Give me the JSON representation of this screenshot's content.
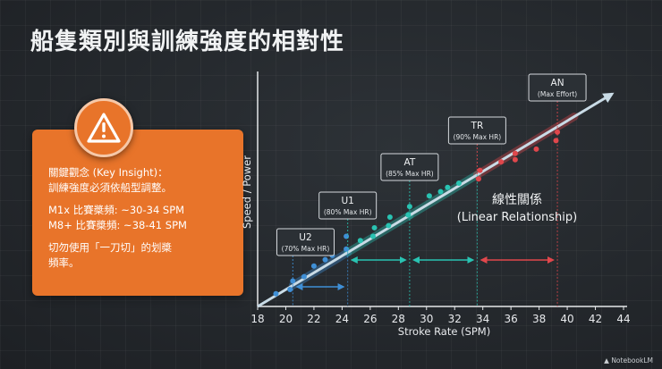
{
  "title": "船隻類別與訓練強度的相對性",
  "insight": {
    "heading": "關鍵觀念 (Key Insight)：",
    "body": "訓練強度必須依船型調整。",
    "m1x": "M1x 比賽槳頻: ~30-34 SPM",
    "m8": "M8+ 比賽槳頻: ~38-41 SPM",
    "note_line1": "切勿使用「一刀切」的划槳",
    "note_line2": "頻率。",
    "icon": "warning-icon"
  },
  "relationship": {
    "line1": "線性關係",
    "line2": "(Linear Relationship)"
  },
  "footer": "NotebookLM",
  "colors": {
    "accent_orange": "#e8742a",
    "blue": "#3f8fd6",
    "teal": "#29c3b2",
    "red": "#e0474c",
    "trend": "#c9dbe6"
  },
  "chart_data": {
    "type": "scatter",
    "xlabel": "Stroke Rate (SPM)",
    "ylabel": "Speed / Power",
    "xlim": [
      18,
      44
    ],
    "x_ticks": [
      18,
      20,
      22,
      24,
      26,
      28,
      30,
      32,
      34,
      36,
      38,
      40,
      42,
      44
    ],
    "ylim": [
      0,
      1
    ],
    "trend": {
      "x0": 18,
      "y0": 0.0,
      "x1": 43.2,
      "y1": 1.0
    },
    "zones": [
      {
        "label": "U2",
        "sublabel": "(70% Max HR)",
        "x_start": 20.5,
        "x_end": 24.4,
        "color": "blue"
      },
      {
        "label": "U1",
        "sublabel": "(80% Max HR)",
        "x_start": 24.4,
        "x_end": 28.8,
        "color": "teal"
      },
      {
        "label": "AT",
        "sublabel": "(85% Max HR)",
        "x_start": 28.8,
        "x_end": 33.6,
        "color": "teal"
      },
      {
        "label": "TR",
        "sublabel": "(90% Max HR)",
        "x_start": 33.6,
        "x_end": 39.3,
        "color": "red"
      },
      {
        "label": "AN",
        "sublabel": "(Max Effort)",
        "x_start": 39.3,
        "x_end": 39.3,
        "color": "red"
      }
    ],
    "points": [
      {
        "x": 19.3,
        "y": 0.06,
        "color": "blue"
      },
      {
        "x": 20.3,
        "y": 0.08,
        "color": "blue"
      },
      {
        "x": 20.5,
        "y": 0.12,
        "color": "blue"
      },
      {
        "x": 21.3,
        "y": 0.14,
        "color": "blue"
      },
      {
        "x": 22.0,
        "y": 0.19,
        "color": "blue"
      },
      {
        "x": 22.8,
        "y": 0.22,
        "color": "blue"
      },
      {
        "x": 23.3,
        "y": 0.24,
        "color": "blue"
      },
      {
        "x": 24.3,
        "y": 0.27,
        "color": "blue"
      },
      {
        "x": 24.3,
        "y": 0.33,
        "color": "blue"
      },
      {
        "x": 25.3,
        "y": 0.31,
        "color": "teal"
      },
      {
        "x": 26.2,
        "y": 0.33,
        "color": "teal"
      },
      {
        "x": 26.3,
        "y": 0.37,
        "color": "teal"
      },
      {
        "x": 27.3,
        "y": 0.38,
        "color": "teal"
      },
      {
        "x": 27.4,
        "y": 0.42,
        "color": "teal"
      },
      {
        "x": 28.7,
        "y": 0.43,
        "color": "teal"
      },
      {
        "x": 28.8,
        "y": 0.47,
        "color": "teal"
      },
      {
        "x": 30.2,
        "y": 0.52,
        "color": "teal"
      },
      {
        "x": 31.0,
        "y": 0.54,
        "color": "teal"
      },
      {
        "x": 31.5,
        "y": 0.56,
        "color": "teal"
      },
      {
        "x": 32.3,
        "y": 0.58,
        "color": "teal"
      },
      {
        "x": 33.7,
        "y": 0.6,
        "color": "red"
      },
      {
        "x": 33.8,
        "y": 0.64,
        "color": "red"
      },
      {
        "x": 35.3,
        "y": 0.68,
        "color": "red"
      },
      {
        "x": 36.3,
        "y": 0.69,
        "color": "red"
      },
      {
        "x": 36.3,
        "y": 0.72,
        "color": "red"
      },
      {
        "x": 37.8,
        "y": 0.74,
        "color": "red"
      },
      {
        "x": 39.2,
        "y": 0.78,
        "color": "red"
      },
      {
        "x": 39.3,
        "y": 0.82,
        "color": "red"
      }
    ]
  }
}
